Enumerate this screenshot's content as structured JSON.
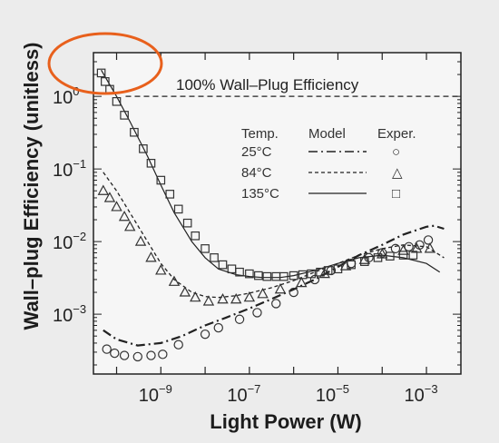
{
  "chart_data": {
    "type": "line",
    "xlabel": "Light Power (W)",
    "ylabel": "Wall–plug Efficiency (unitless)",
    "x_scale": "log",
    "y_scale": "log",
    "xlim": [
      3e-11,
      0.006
    ],
    "ylim": [
      0.00015,
      4
    ],
    "x_ticks": [
      {
        "value": 1e-09,
        "label": "10",
        "exp": "−9"
      },
      {
        "value": 1e-07,
        "label": "10",
        "exp": "−7"
      },
      {
        "value": 1e-05,
        "label": "10",
        "exp": "−5"
      },
      {
        "value": 0.001,
        "label": "10",
        "exp": "−3"
      }
    ],
    "y_ticks": [
      {
        "value": 1,
        "label": "10",
        "exp": "0"
      },
      {
        "value": 0.1,
        "label": "10",
        "exp": "−1"
      },
      {
        "value": 0.01,
        "label": "10",
        "exp": "−2"
      },
      {
        "value": 0.001,
        "label": "10",
        "exp": "−3"
      }
    ],
    "reference_line": {
      "y": 1,
      "label": "100% Wall–Plug Efficiency"
    },
    "legend": {
      "placement": "upper-middle",
      "headers": [
        "Temp.",
        "Model",
        "Exper."
      ],
      "entries": [
        {
          "temp": "25°C",
          "model_style": "dash-dot",
          "marker": "circle",
          "marker_symbol": "○"
        },
        {
          "temp": "84°C",
          "model_style": "dashed",
          "marker": "triangle",
          "marker_symbol": "△"
        },
        {
          "temp": "135°C",
          "model_style": "solid",
          "marker": "square",
          "marker_symbol": "□"
        }
      ]
    },
    "series": [
      {
        "temp_index": 0,
        "line_style": "dash-dot",
        "model": [
          [
            5e-11,
            0.0006
          ],
          [
            1e-10,
            0.00045
          ],
          [
            3e-10,
            0.00037
          ],
          [
            1e-09,
            0.0004
          ],
          [
            3e-09,
            0.0005
          ],
          [
            1e-08,
            0.0007
          ],
          [
            3e-08,
            0.0009
          ],
          [
            1e-07,
            0.0012
          ],
          [
            3e-07,
            0.0016
          ],
          [
            1e-06,
            0.0022
          ],
          [
            3e-06,
            0.003
          ],
          [
            1e-05,
            0.0045
          ],
          [
            3e-05,
            0.0065
          ],
          [
            0.0001,
            0.009
          ],
          [
            0.0003,
            0.0125
          ],
          [
            0.001,
            0.016
          ],
          [
            0.0015,
            0.0165
          ],
          [
            0.0025,
            0.015
          ]
        ],
        "exper": [
          [
            6e-11,
            0.00033
          ],
          [
            9e-11,
            0.00029
          ],
          [
            1.5e-10,
            0.00027
          ],
          [
            3e-10,
            0.00026
          ],
          [
            6e-10,
            0.00027
          ],
          [
            1.1e-09,
            0.00028
          ],
          [
            2.5e-09,
            0.00038
          ],
          [
            1e-08,
            0.00053
          ],
          [
            2e-08,
            0.00065
          ],
          [
            6e-08,
            0.00085
          ],
          [
            1.5e-07,
            0.00105
          ],
          [
            4e-07,
            0.0014
          ],
          [
            1e-06,
            0.002
          ],
          [
            3e-06,
            0.003
          ],
          [
            7e-06,
            0.004
          ],
          [
            2e-05,
            0.005
          ],
          [
            5e-05,
            0.006
          ],
          [
            0.0001,
            0.007
          ],
          [
            0.0002,
            0.008
          ],
          [
            0.0004,
            0.0085
          ],
          [
            0.0007,
            0.009
          ],
          [
            0.0011,
            0.0105
          ]
        ]
      },
      {
        "temp_index": 1,
        "line_style": "dashed",
        "model": [
          [
            5e-11,
            0.09
          ],
          [
            1e-10,
            0.05
          ],
          [
            2e-10,
            0.025
          ],
          [
            5e-10,
            0.01
          ],
          [
            1e-09,
            0.005
          ],
          [
            2e-09,
            0.003
          ],
          [
            5e-09,
            0.002
          ],
          [
            1e-08,
            0.00175
          ],
          [
            2e-08,
            0.0017
          ],
          [
            5e-08,
            0.0018
          ],
          [
            1e-07,
            0.00195
          ],
          [
            3e-07,
            0.0023
          ],
          [
            1e-06,
            0.0029
          ],
          [
            3e-06,
            0.0038
          ],
          [
            1e-05,
            0.005
          ],
          [
            3e-05,
            0.0065
          ],
          [
            0.0001,
            0.008
          ],
          [
            0.0003,
            0.009
          ],
          [
            0.001,
            0.0085
          ],
          [
            0.0025,
            0.006
          ]
        ],
        "exper": [
          [
            5e-11,
            0.05
          ],
          [
            7e-11,
            0.04
          ],
          [
            1e-10,
            0.03
          ],
          [
            1.5e-10,
            0.022
          ],
          [
            2e-10,
            0.016
          ],
          [
            3.5e-10,
            0.01
          ],
          [
            6e-10,
            0.006
          ],
          [
            1e-09,
            0.004
          ],
          [
            2e-09,
            0.0028
          ],
          [
            3.5e-09,
            0.002
          ],
          [
            6e-09,
            0.0017
          ],
          [
            1.2e-08,
            0.0015
          ],
          [
            2.5e-08,
            0.0016
          ],
          [
            5e-08,
            0.0016
          ],
          [
            1e-07,
            0.0017
          ],
          [
            2e-07,
            0.0019
          ],
          [
            5e-07,
            0.0022
          ],
          [
            1.5e-06,
            0.0027
          ],
          [
            5e-06,
            0.0036
          ],
          [
            1.5e-05,
            0.0046
          ],
          [
            4e-05,
            0.0056
          ],
          [
            0.0001,
            0.0067
          ],
          [
            0.0003,
            0.0075
          ],
          [
            0.0006,
            0.008
          ],
          [
            0.0012,
            0.008
          ]
        ]
      },
      {
        "temp_index": 2,
        "line_style": "solid",
        "model": [
          [
            4.5e-11,
            2.3
          ],
          [
            6e-11,
            1.7
          ],
          [
            1e-10,
            1
          ],
          [
            2e-10,
            0.45
          ],
          [
            5e-10,
            0.15
          ],
          [
            1e-09,
            0.06
          ],
          [
            2e-09,
            0.025
          ],
          [
            5e-09,
            0.01
          ],
          [
            1e-08,
            0.006
          ],
          [
            2e-08,
            0.0042
          ],
          [
            5e-08,
            0.0035
          ],
          [
            1e-07,
            0.0033
          ],
          [
            2e-07,
            0.0032
          ],
          [
            5e-07,
            0.0032
          ],
          [
            1e-06,
            0.0034
          ],
          [
            3e-06,
            0.004
          ],
          [
            1e-05,
            0.005
          ],
          [
            3e-05,
            0.006
          ],
          [
            0.0001,
            0.0065
          ],
          [
            0.0003,
            0.006
          ],
          [
            0.001,
            0.005
          ],
          [
            0.002,
            0.0038
          ]
        ],
        "exper": [
          [
            4.5e-11,
            2.1
          ],
          [
            5.5e-11,
            1.6
          ],
          [
            7e-11,
            1.25
          ],
          [
            1e-10,
            0.85
          ],
          [
            1.5e-10,
            0.55
          ],
          [
            2.5e-10,
            0.32
          ],
          [
            4e-10,
            0.19
          ],
          [
            6e-10,
            0.12
          ],
          [
            1e-09,
            0.07
          ],
          [
            1.6e-09,
            0.045
          ],
          [
            2.5e-09,
            0.028
          ],
          [
            4e-09,
            0.018
          ],
          [
            6e-09,
            0.012
          ],
          [
            1e-08,
            0.008
          ],
          [
            1.6e-08,
            0.006
          ],
          [
            2.5e-08,
            0.0048
          ],
          [
            4e-08,
            0.0042
          ],
          [
            6e-08,
            0.0038
          ],
          [
            1e-07,
            0.0036
          ],
          [
            1.6e-07,
            0.0034
          ],
          [
            2.5e-07,
            0.0033
          ],
          [
            4e-07,
            0.0033
          ],
          [
            6e-07,
            0.0033
          ],
          [
            1e-06,
            0.0034
          ],
          [
            1.6e-06,
            0.0035
          ],
          [
            2.5e-06,
            0.0036
          ],
          [
            4e-06,
            0.0038
          ],
          [
            6e-06,
            0.004
          ],
          [
            1e-05,
            0.0042
          ],
          [
            2e-05,
            0.0048
          ],
          [
            4e-05,
            0.0053
          ],
          [
            8e-05,
            0.006
          ],
          [
            0.00015,
            0.0063
          ],
          [
            0.0003,
            0.0065
          ],
          [
            0.0005,
            0.0065
          ]
        ]
      }
    ],
    "annotation": {
      "shape": "ellipse",
      "color": "#e8601c",
      "around": "upper-left region near y=10^0"
    }
  }
}
